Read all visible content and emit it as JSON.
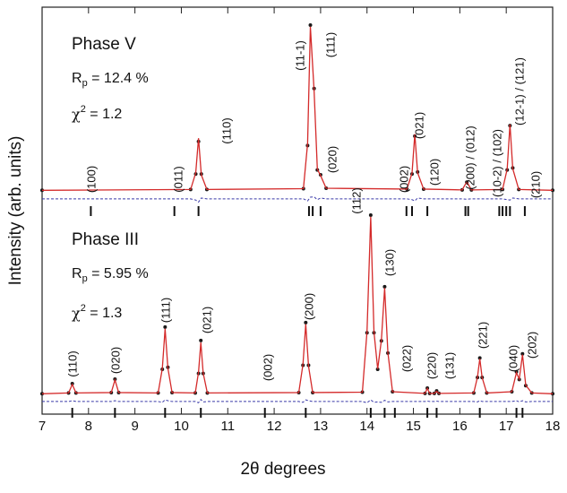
{
  "chart_data": {
    "type": "line",
    "x_label": "2θ degrees",
    "y_label": "Intensity (arb. units)",
    "xlim": [
      7,
      18
    ],
    "xticks": [
      7,
      8,
      9,
      10,
      11,
      12,
      13,
      14,
      15,
      16,
      17,
      18
    ],
    "ylim": [
      0,
      100
    ],
    "panels": [
      {
        "title": "Phase V",
        "rp": {
          "base": "R",
          "sub": "p",
          "rest": " = 12.4 %"
        },
        "chi": {
          "base": "χ",
          "sup": "2",
          "rest": " = 1.2"
        },
        "x": [
          7,
          10.2,
          10.31,
          10.37,
          10.43,
          10.55,
          12.63,
          12.72,
          12.78,
          12.86,
          12.93,
          13.0,
          13.12,
          14.86,
          14.97,
          15.03,
          15.09,
          15.22,
          16.05,
          16.15,
          16.25,
          16.92,
          17.02,
          17.08,
          17.14,
          17.27,
          18
        ],
        "observed": {
          "color": "#1a1a1a",
          "values": [
            55,
            55.2,
            59,
            67.0,
            59,
            55.2,
            55.4,
            66,
            95.6,
            80,
            60,
            58.8,
            55.5,
            55.3,
            59,
            68.3,
            59.5,
            55.3,
            55.1,
            57.0,
            55.1,
            55.2,
            60,
            70.9,
            60.5,
            55.2,
            55
          ]
        },
        "calculated": {
          "color": "#d42a2a",
          "values": [
            55,
            55.2,
            59.3,
            67.8,
            58.8,
            55.2,
            55.4,
            66.5,
            95.2,
            79.5,
            60.2,
            58.6,
            55.5,
            55.3,
            59.2,
            68.8,
            59.3,
            55.3,
            55.1,
            57.1,
            55.1,
            55.2,
            60.2,
            71.2,
            60.3,
            55.2,
            55
          ]
        },
        "difference": {
          "color": "#3a3aa8",
          "values": [
            52.9,
            52.9,
            52.6,
            52.1,
            53.1,
            52.9,
            52.9,
            52.4,
            53.3,
            53.4,
            52.7,
            53.1,
            52.9,
            52.9,
            52.7,
            52.4,
            53.1,
            52.9,
            52.9,
            52.8,
            52.9,
            52.9,
            52.7,
            52.6,
            53.1,
            52.9,
            52.9
          ]
        },
        "reflections": [
          8.05,
          9.85,
          10.37,
          12.75,
          12.83,
          13.0,
          14.85,
          14.97,
          15.3,
          16.12,
          16.18,
          16.85,
          16.92,
          17.0,
          17.08,
          17.4
        ],
        "annotations": [
          "(100)",
          "(011)",
          "(110)",
          "(11-1)",
          "(111)",
          "(020)",
          "(002)",
          "(021)",
          "(120)",
          "(200) / (012)",
          "(10-2) / (102)",
          "(12-1) / (121)",
          "(210)"
        ]
      },
      {
        "title": "Phase III",
        "rp": {
          "base": "R",
          "sub": "p",
          "rest": " = 5.95 %"
        },
        "chi": {
          "base": "χ",
          "sup": "2",
          "rest": " = 1.3"
        },
        "x": [
          7,
          7.57,
          7.65,
          7.73,
          8.49,
          8.57,
          8.65,
          9.5,
          9.59,
          9.65,
          9.71,
          9.8,
          10.3,
          10.37,
          10.42,
          10.47,
          10.56,
          12.53,
          12.62,
          12.68,
          12.74,
          12.83,
          13.9,
          14.0,
          14.08,
          14.15,
          14.23,
          14.31,
          14.38,
          14.45,
          14.55,
          15.25,
          15.3,
          15.35,
          15.45,
          15.5,
          15.55,
          16.3,
          16.38,
          16.43,
          16.48,
          16.58,
          17.12,
          17.22,
          17.28,
          17.35,
          17.42,
          17.55,
          18
        ],
        "observed": {
          "color": "#1a1a1a",
          "values": [
            5,
            5.2,
            7.5,
            5.2,
            5.3,
            8.6,
            5.3,
            5.2,
            11,
            21.4,
            11.5,
            5.3,
            5.2,
            10,
            18.1,
            10,
            5.2,
            5.3,
            12,
            22.5,
            12,
            5.3,
            5.4,
            20,
            48.9,
            20,
            11,
            18,
            31.3,
            15,
            5.5,
            5.1,
            6.4,
            5.1,
            5.1,
            5.7,
            5.1,
            5.2,
            9,
            13.8,
            9,
            5.2,
            5.5,
            10.4,
            8.5,
            14.8,
            7,
            5.2,
            5
          ]
        },
        "calculated": {
          "color": "#d42a2a",
          "values": [
            5,
            5.2,
            7.3,
            5.2,
            5.3,
            8.4,
            5.3,
            5.2,
            11.2,
            21.0,
            11.3,
            5.3,
            5.2,
            10.3,
            17.6,
            10.1,
            5.2,
            5.3,
            12.2,
            22.1,
            11.8,
            5.3,
            5.4,
            20.3,
            48.5,
            20.2,
            11.1,
            18.2,
            31.0,
            15.1,
            5.5,
            5.1,
            6.3,
            5.1,
            5.1,
            5.6,
            5.1,
            5.2,
            9.1,
            13.6,
            9.0,
            5.2,
            5.5,
            10.2,
            8.6,
            14.6,
            7.1,
            5.2,
            5
          ]
        },
        "difference": {
          "color": "#3a3aa8",
          "values": [
            3.1,
            3.1,
            3.3,
            3.1,
            3.1,
            3.3,
            3.1,
            3.1,
            2.9,
            3.5,
            3.3,
            3.1,
            3.1,
            2.8,
            3.6,
            3.0,
            3.1,
            3.1,
            2.9,
            3.5,
            3.3,
            3.1,
            3.1,
            2.8,
            3.5,
            2.9,
            3.0,
            2.9,
            3.4,
            3.0,
            3.1,
            3.1,
            3.2,
            3.1,
            3.1,
            3.2,
            3.1,
            3.1,
            3.0,
            3.3,
            3.1,
            3.1,
            3.1,
            3.3,
            3.0,
            3.3,
            3.0,
            3.1,
            3.1
          ]
        },
        "reflections": [
          7.65,
          8.57,
          9.65,
          10.42,
          11.8,
          12.68,
          14.08,
          14.38,
          14.6,
          15.3,
          15.5,
          16.43,
          17.22,
          17.35
        ],
        "annotations": [
          "(110)",
          "(020)",
          "(111)",
          "(021)",
          "(002)",
          "(200)",
          "(112)",
          "(130)",
          "(022)",
          "(220)",
          "(131)",
          "(221)",
          "(040)",
          "(202)"
        ]
      }
    ]
  }
}
